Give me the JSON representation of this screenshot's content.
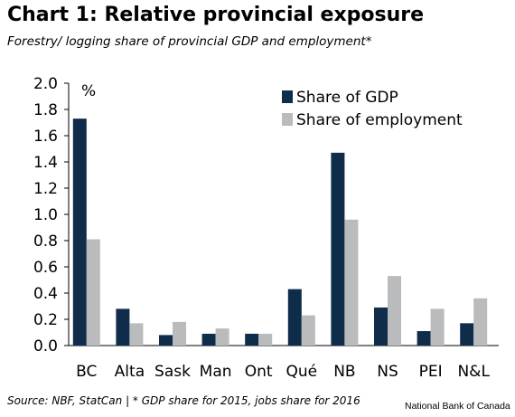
{
  "header": {
    "title": "Chart 1: Relative provincial exposure",
    "subtitle": "Forestry/ logging share of provincial GDP and employment*"
  },
  "footer": {
    "source": "Source: NBF, StatCan | * GDP share for 2015, jobs share for 2016",
    "credit": "National Bank of Canada"
  },
  "chart_data": {
    "type": "bar",
    "unit_label": "%",
    "categories": [
      "BC",
      "Alta",
      "Sask",
      "Man",
      "Ont",
      "Qué",
      "NB",
      "NS",
      "PEI",
      "N&L"
    ],
    "series": [
      {
        "name": "Share of GDP",
        "color": "#0f2d4a",
        "values": [
          1.73,
          0.28,
          0.08,
          0.09,
          0.09,
          0.43,
          1.47,
          0.29,
          0.11,
          0.17
        ]
      },
      {
        "name": "Share of employment",
        "color": "#b9bbbd",
        "values": [
          0.81,
          0.17,
          0.18,
          0.13,
          0.09,
          0.23,
          0.96,
          0.53,
          0.28,
          0.36
        ]
      }
    ],
    "yticks": [
      "0.0",
      "0.2",
      "0.4",
      "0.6",
      "0.8",
      "1.0",
      "1.2",
      "1.4",
      "1.6",
      "1.8",
      "2.0"
    ],
    "ylim": [
      0,
      2.0
    ],
    "legend_position": "top-right",
    "grid": false
  }
}
